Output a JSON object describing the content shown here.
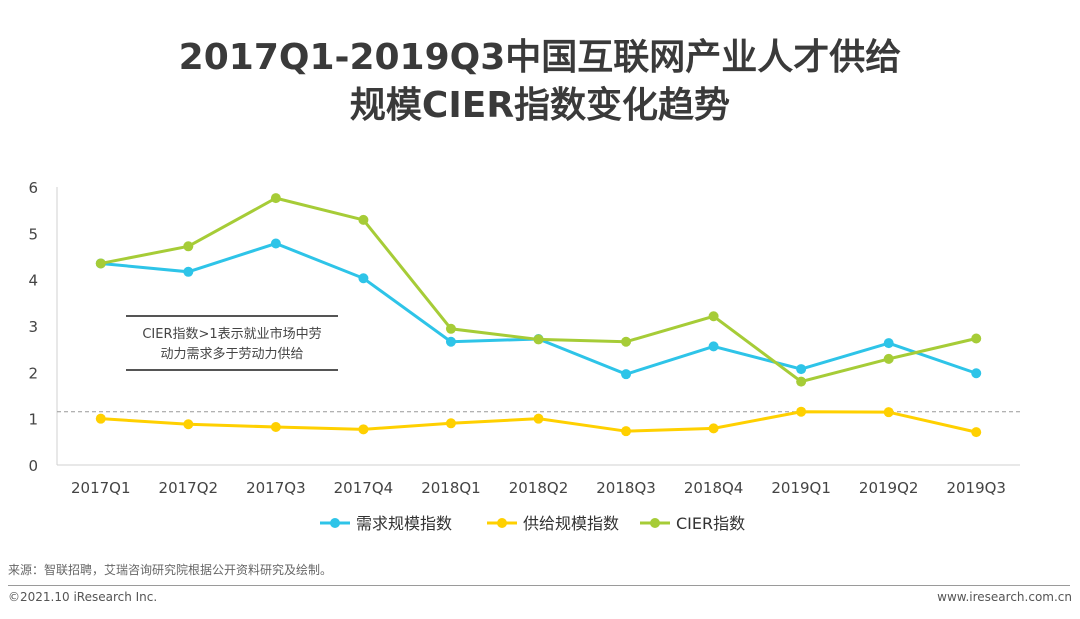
{
  "title_line1": "2017Q1-2019Q3中国互联网产业人才供给",
  "title_line2": "规模CIER指数变化趋势",
  "source": "来源：智联招聘，艾瑞咨询研究院根据公开资料研究及绘制。",
  "copyright": "©2021.10 iResearch Inc.",
  "website": "www.iresearch.com.cn",
  "annotation": {
    "line1": "CIER指数>1表示就业市场中劳",
    "line2": "动力需求多于劳动力供给"
  },
  "chart_data": {
    "type": "line",
    "categories": [
      "2017Q1",
      "2017Q2",
      "2017Q3",
      "2017Q4",
      "2018Q1",
      "2018Q2",
      "2018Q3",
      "2018Q4",
      "2019Q1",
      "2019Q2",
      "2019Q3"
    ],
    "ylim": [
      0,
      6
    ],
    "yticks": [
      0,
      1,
      2,
      3,
      4,
      5,
      6
    ],
    "reference_line": 1.15,
    "legend_position": "bottom",
    "series": [
      {
        "name": "需求规模指数",
        "color": "#2ec4e8",
        "values": [
          4.35,
          4.17,
          4.78,
          4.03,
          2.66,
          2.72,
          1.96,
          2.56,
          2.07,
          2.63,
          1.98
        ]
      },
      {
        "name": "供给规模指数",
        "color": "#ffd000",
        "values": [
          1.0,
          0.88,
          0.82,
          0.77,
          0.9,
          1.0,
          0.73,
          0.79,
          1.15,
          1.14,
          0.71
        ]
      },
      {
        "name": "CIER指数",
        "color": "#a6cc37",
        "values": [
          4.35,
          4.72,
          5.76,
          5.29,
          2.94,
          2.71,
          2.66,
          3.21,
          1.8,
          2.29,
          2.73
        ]
      }
    ]
  }
}
